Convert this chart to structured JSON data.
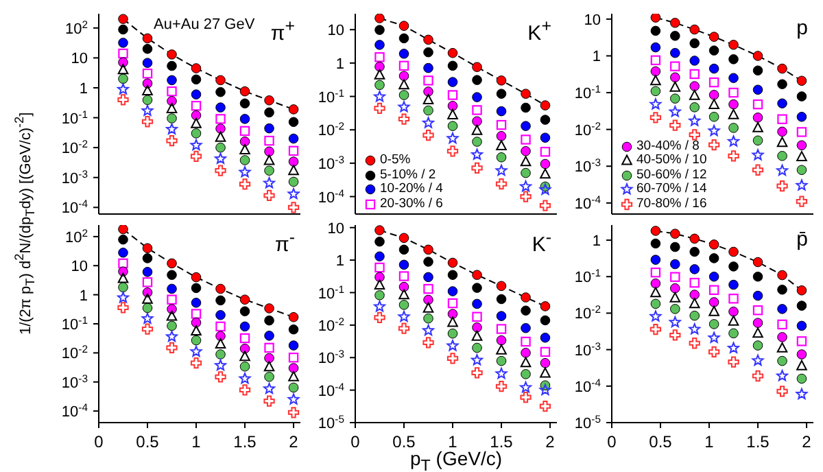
{
  "chart_data": [
    {
      "type": "scatter",
      "title": "π$^{+}$",
      "annotations": [
        "Au+Au 27 GeV"
      ],
      "ylabel": "1/(2π p$_{T}$) d$^{2}$N/(dp$_{T}$dy) [(GeV/c)$^{-2}$]",
      "log": true,
      "tick_labels": "y",
      "xlim": [
        0,
        2.07
      ],
      "xticks": [
        0,
        0.5,
        1,
        1.5,
        2
      ],
      "ylim": [
        6e-05,
        300
      ],
      "yticks": [
        {
          "value": 0.0001,
          "label": "10$^{-4}$"
        },
        {
          "value": 0.001,
          "label": "10$^{-3}$"
        },
        {
          "value": 0.01,
          "label": "10$^{-2}$"
        },
        {
          "value": 0.1,
          "label": "10$^{-1}$"
        },
        {
          "value": 1,
          "label": "1"
        },
        {
          "value": 10,
          "label": "10"
        },
        {
          "value": 100,
          "label": "10$^{2}$"
        }
      ],
      "x": [
        0.25,
        0.5,
        0.75,
        1.0,
        1.25,
        1.5,
        1.75,
        2.0
      ],
      "series": [
        {
          "color": "#ff0000",
          "marker": "circle",
          "values": [
            200,
            45,
            13,
            4.5,
            1.8,
            0.76,
            0.38,
            0.19
          ]
        },
        {
          "color": "#000000",
          "marker": "circle",
          "values": [
            89,
            20,
            5.4,
            1.9,
            0.72,
            0.3,
            0.15,
            0.072
          ]
        },
        {
          "color": "#0000ff",
          "marker": "circle",
          "values": [
            32,
            6.8,
            1.8,
            0.6,
            0.22,
            0.091,
            0.044,
            0.02
          ]
        },
        {
          "color": "#ff00ff",
          "marker": "square",
          "values": [
            14,
            3.0,
            0.76,
            0.25,
            0.091,
            0.036,
            0.017,
            0.0078
          ]
        },
        {
          "color": "#ff00ff",
          "marker": "circle",
          "values": [
            7.1,
            1.4,
            0.36,
            0.12,
            0.043,
            0.016,
            0.0074,
            0.0034
          ]
        },
        {
          "color": "#000000",
          "marker": "triangle",
          "values": [
            4.0,
            0.79,
            0.2,
            0.063,
            0.022,
            0.0083,
            0.0037,
            0.0017
          ]
        },
        {
          "color": "#5cc15c",
          "marker": "circle",
          "values": [
            2.0,
            0.39,
            0.095,
            0.03,
            0.01,
            0.0038,
            0.0017,
            0.00072
          ]
        },
        {
          "color": "#3333ff",
          "marker": "star",
          "values": [
            0.89,
            0.17,
            0.041,
            0.012,
            0.0042,
            0.0015,
            0.00065,
            0.00028
          ]
        },
        {
          "color": "#ff3333",
          "marker": "cross",
          "values": [
            0.4,
            0.074,
            0.017,
            0.0051,
            0.0017,
            0.0006,
            0.00025,
            0.0001
          ]
        },
        {
          "type": "line",
          "color": "#000000",
          "marker": "none",
          "line_style": "dashed",
          "values": [
            200,
            45,
            13,
            4.5,
            1.8,
            0.76,
            0.38,
            0.19
          ]
        }
      ]
    },
    {
      "type": "scatter",
      "title": "K$^{+}$",
      "log": true,
      "tick_labels": "y",
      "legend": "bottom left",
      "xlim": [
        0,
        2.07
      ],
      "xticks": [
        0,
        0.5,
        1,
        1.5,
        2
      ],
      "ylim": [
        3e-05,
        30
      ],
      "yticks": [
        {
          "value": 0.0001,
          "label": "10$^{-4}$"
        },
        {
          "value": 0.001,
          "label": "10$^{-3}$"
        },
        {
          "value": 0.01,
          "label": "10$^{-2}$"
        },
        {
          "value": 0.1,
          "label": "10$^{-1}$"
        },
        {
          "value": 1,
          "label": "1"
        },
        {
          "value": 10,
          "label": "10"
        }
      ],
      "x": [
        0.25,
        0.5,
        0.75,
        1.0,
        1.25,
        1.5,
        1.75,
        1.95
      ],
      "series": [
        {
          "name": "0-5%",
          "color": "#ff0000",
          "marker": "circle",
          "values": [
            22,
            13,
            5.0,
            2.0,
            0.76,
            0.3,
            0.12,
            0.054
          ]
        },
        {
          "name": "5-10% / 2",
          "color": "#000000",
          "marker": "circle",
          "values": [
            9.8,
            5.5,
            2.1,
            0.83,
            0.31,
            0.12,
            0.046,
            0.02
          ]
        },
        {
          "name": "10-20% / 4",
          "color": "#0000ff",
          "marker": "circle",
          "values": [
            3.5,
            1.9,
            0.71,
            0.27,
            0.095,
            0.036,
            0.013,
            0.0058
          ]
        },
        {
          "name": "20-30% / 6",
          "color": "#ff00ff",
          "marker": "square",
          "values": [
            1.5,
            0.83,
            0.3,
            0.11,
            0.039,
            0.014,
            0.0051,
            0.0022
          ]
        },
        {
          "color": "#ff00ff",
          "marker": "circle",
          "values": [
            0.78,
            0.41,
            0.14,
            0.052,
            0.018,
            0.0065,
            0.0023,
            0.00095
          ]
        },
        {
          "color": "#000000",
          "marker": "triangle",
          "values": [
            0.44,
            0.22,
            0.079,
            0.028,
            0.0095,
            0.0033,
            0.0011,
            0.00047
          ]
        },
        {
          "color": "#5cc15c",
          "marker": "circle",
          "values": [
            0.22,
            0.11,
            0.038,
            0.013,
            0.0044,
            0.0015,
            0.00051,
            0.0002
          ]
        },
        {
          "color": "#3333ff",
          "marker": "star",
          "values": [
            0.098,
            0.048,
            0.016,
            0.0055,
            0.0018,
            0.0006,
            0.0002,
            0.00016
          ]
        },
        {
          "color": "#ff3333",
          "marker": "cross",
          "values": [
            0.044,
            0.021,
            0.0069,
            0.0023,
            0.00072,
            0.00024,
            0.0001,
            5.4e-05
          ]
        },
        {
          "type": "line",
          "color": "#000000",
          "marker": "none",
          "line_style": "dashed",
          "values": [
            22,
            13,
            5.0,
            2.0,
            0.76,
            0.3,
            0.12,
            0.054
          ]
        }
      ]
    },
    {
      "type": "scatter",
      "title": "p",
      "log": true,
      "tick_labels": "y",
      "legend": "bottom left",
      "xlim": [
        0,
        2.07
      ],
      "xticks": [
        0,
        0.5,
        1,
        1.5,
        2
      ],
      "ylim": [
        5e-05,
        14
      ],
      "yticks": [
        {
          "value": 0.0001,
          "label": "10$^{-4}$"
        },
        {
          "value": 0.001,
          "label": "10$^{-3}$"
        },
        {
          "value": 0.01,
          "label": "10$^{-2}$"
        },
        {
          "value": 0.1,
          "label": "10$^{-1}$"
        },
        {
          "value": 1,
          "label": "1"
        },
        {
          "value": 10,
          "label": "10"
        }
      ],
      "x": [
        0.45,
        0.65,
        0.85,
        1.05,
        1.25,
        1.5,
        1.75,
        1.95
      ],
      "series": [
        {
          "color": "#ff0000",
          "marker": "circle",
          "values": [
            11,
            7.9,
            5.2,
            3.3,
            2.0,
            1.0,
            0.45,
            0.21
          ]
        },
        {
          "color": "#000000",
          "marker": "circle",
          "values": [
            4.8,
            3.5,
            2.2,
            1.4,
            0.81,
            0.4,
            0.17,
            0.079
          ]
        },
        {
          "color": "#0000ff",
          "marker": "circle",
          "values": [
            1.7,
            1.2,
            0.74,
            0.45,
            0.25,
            0.12,
            0.051,
            0.022
          ]
        },
        {
          "color": "#ff00ff",
          "marker": "square",
          "values": [
            0.76,
            0.52,
            0.32,
            0.19,
            0.1,
            0.048,
            0.019,
            0.0085
          ]
        },
        {
          "name": "30-40% / 8",
          "color": "#ff00ff",
          "marker": "circle",
          "values": [
            0.38,
            0.26,
            0.15,
            0.087,
            0.048,
            0.021,
            0.0087,
            0.0037
          ]
        },
        {
          "name": "40-50% / 10",
          "color": "#000000",
          "marker": "triangle",
          "values": [
            0.21,
            0.14,
            0.083,
            0.047,
            0.025,
            0.011,
            0.0044,
            0.0018
          ]
        },
        {
          "name": "50-60% / 12",
          "color": "#5cc15c",
          "marker": "circle",
          "values": [
            0.11,
            0.069,
            0.04,
            0.022,
            0.011,
            0.005,
            0.0019,
            0.00079
          ]
        },
        {
          "name": "60-70% / 14",
          "color": "#3333ff",
          "marker": "star",
          "values": [
            0.048,
            0.03,
            0.017,
            0.0091,
            0.0047,
            0.002,
            0.00076,
            0.0003
          ]
        },
        {
          "name": "70-80% / 16",
          "color": "#ff3333",
          "marker": "cross",
          "values": [
            0.021,
            0.013,
            0.0072,
            0.0038,
            0.0019,
            0.00079,
            0.00029,
            0.00011
          ]
        },
        {
          "type": "line",
          "color": "#000000",
          "marker": "none",
          "line_style": "dashed",
          "values": [
            11,
            7.9,
            5.2,
            3.3,
            2.0,
            1.0,
            0.45,
            0.21
          ]
        }
      ]
    },
    {
      "type": "scatter",
      "title": "π$^{-}$",
      "log": true,
      "xlim": [
        0,
        2.07
      ],
      "xticks": [
        0,
        0.5,
        1,
        1.5,
        2
      ],
      "ylim": [
        4e-05,
        250
      ],
      "yticks": [
        {
          "value": 0.0001,
          "label": "10$^{-4}$"
        },
        {
          "value": 0.001,
          "label": "10$^{-3}$"
        },
        {
          "value": 0.01,
          "label": "10$^{-2}$"
        },
        {
          "value": 0.1,
          "label": "10$^{-1}$"
        },
        {
          "value": 1,
          "label": "1"
        },
        {
          "value": 10,
          "label": "10"
        },
        {
          "value": 100,
          "label": "10$^{2}$"
        }
      ],
      "x": [
        0.25,
        0.5,
        0.75,
        1.0,
        1.25,
        1.5,
        1.75,
        2.0
      ],
      "series": [
        {
          "color": "#ff0000",
          "marker": "circle",
          "values": [
            180,
            40,
            12,
            4.0,
            1.6,
            0.68,
            0.34,
            0.17
          ]
        },
        {
          "color": "#000000",
          "marker": "circle",
          "values": [
            79,
            18,
            4.8,
            1.7,
            0.64,
            0.27,
            0.13,
            0.064
          ]
        },
        {
          "color": "#0000ff",
          "marker": "circle",
          "values": [
            28,
            6.1,
            1.6,
            0.53,
            0.2,
            0.081,
            0.039,
            0.018
          ]
        },
        {
          "color": "#ff00ff",
          "marker": "square",
          "values": [
            12,
            2.7,
            0.68,
            0.22,
            0.081,
            0.032,
            0.015,
            0.0069
          ]
        },
        {
          "color": "#ff00ff",
          "marker": "circle",
          "values": [
            6.3,
            1.2,
            0.32,
            0.11,
            0.038,
            0.014,
            0.0066,
            0.003
          ]
        },
        {
          "color": "#000000",
          "marker": "triangle",
          "values": [
            3.6,
            0.7,
            0.18,
            0.056,
            0.02,
            0.0074,
            0.0033,
            0.0015
          ]
        },
        {
          "color": "#5cc15c",
          "marker": "circle",
          "values": [
            1.8,
            0.35,
            0.085,
            0.027,
            0.0089,
            0.0034,
            0.0015,
            0.00064
          ]
        },
        {
          "color": "#3333ff",
          "marker": "star",
          "values": [
            0.79,
            0.15,
            0.036,
            0.011,
            0.0037,
            0.0013,
            0.00058,
            0.00025
          ]
        },
        {
          "color": "#ff3333",
          "marker": "cross",
          "values": [
            0.36,
            0.066,
            0.015,
            0.0045,
            0.0015,
            0.00053,
            0.00022,
            8.9e-05
          ]
        },
        {
          "type": "line",
          "color": "#000000",
          "marker": "none",
          "line_style": "dashed",
          "values": [
            180,
            40,
            12,
            4.0,
            1.6,
            0.68,
            0.34,
            0.17
          ]
        }
      ]
    },
    {
      "type": "scatter",
      "title": "K$^{-}$",
      "xlabel": "p$_{T}$ (GeV/c)",
      "log": true,
      "xlim": [
        0,
        2.07
      ],
      "xticks": [
        0,
        0.5,
        1,
        1.5,
        2
      ],
      "ylim": [
        1e-05,
        12
      ],
      "yticks": [
        {
          "value": 1e-05,
          "label": "10$^{-5}$"
        },
        {
          "value": 0.0001,
          "label": "10$^{-4}$"
        },
        {
          "value": 0.001,
          "label": "10$^{-3}$"
        },
        {
          "value": 0.01,
          "label": "10$^{-2}$"
        },
        {
          "value": 0.1,
          "label": "10$^{-1}$"
        },
        {
          "value": 1,
          "label": "1"
        },
        {
          "value": 10,
          "label": "10"
        }
      ],
      "x": [
        0.25,
        0.5,
        0.75,
        1.0,
        1.25,
        1.5,
        1.75,
        1.95
      ],
      "series": [
        {
          "color": "#ff0000",
          "marker": "circle",
          "values": [
            8.3,
            4.8,
            2.1,
            0.83,
            0.35,
            0.16,
            0.071,
            0.038
          ]
        },
        {
          "color": "#000000",
          "marker": "circle",
          "values": [
            3.7,
            2.1,
            0.89,
            0.35,
            0.14,
            0.063,
            0.028,
            0.014
          ]
        },
        {
          "color": "#0000ff",
          "marker": "circle",
          "values": [
            1.3,
            0.72,
            0.3,
            0.11,
            0.045,
            0.019,
            0.0081,
            0.0041
          ]
        },
        {
          "color": "#ff00ff",
          "marker": "square",
          "values": [
            0.59,
            0.32,
            0.13,
            0.047,
            0.018,
            0.0076,
            0.0031,
            0.0015
          ]
        },
        {
          "color": "#ff00ff",
          "marker": "circle",
          "values": [
            0.3,
            0.15,
            0.06,
            0.022,
            0.0085,
            0.0034,
            0.0014,
            0.00068
          ]
        },
        {
          "color": "#000000",
          "marker": "triangle",
          "values": [
            0.17,
            0.085,
            0.033,
            0.012,
            0.0045,
            0.0017,
            0.00069,
            0.00033
          ]
        },
        {
          "color": "#5cc15c",
          "marker": "circle",
          "values": [
            0.083,
            0.042,
            0.016,
            0.0055,
            0.002,
            0.00079,
            0.00031,
            0.00014
          ]
        },
        {
          "color": "#3333ff",
          "marker": "star",
          "values": [
            0.037,
            0.018,
            0.0068,
            0.0023,
            0.00083,
            0.00032,
            0.00012,
            0.0001
          ]
        },
        {
          "color": "#ff3333",
          "marker": "cross",
          "values": [
            0.017,
            0.0079,
            0.0029,
            0.00095,
            0.00034,
            0.00013,
            6e-05,
            3.2e-05
          ]
        },
        {
          "type": "line",
          "color": "#000000",
          "marker": "none",
          "line_style": "dashed",
          "values": [
            8.3,
            4.8,
            2.1,
            0.83,
            0.35,
            0.16,
            0.071,
            0.038
          ]
        }
      ]
    },
    {
      "type": "scatter",
      "title": "p̄",
      "log": true,
      "xlim": [
        0,
        2.07
      ],
      "xticks": [
        0,
        0.5,
        1,
        1.5,
        2
      ],
      "ylim": [
        1e-05,
        2.6
      ],
      "yticks": [
        {
          "value": 1e-05,
          "label": "10$^{-5}$"
        },
        {
          "value": 0.0001,
          "label": "10$^{-4}$"
        },
        {
          "value": 0.001,
          "label": "10$^{-3}$"
        },
        {
          "value": 0.01,
          "label": "10$^{-2}$"
        },
        {
          "value": 0.1,
          "label": "10$^{-1}$"
        },
        {
          "value": 1,
          "label": "1"
        }
      ],
      "x": [
        0.45,
        0.65,
        0.85,
        1.05,
        1.25,
        1.5,
        1.75,
        1.95
      ],
      "series": [
        {
          "color": "#ff0000",
          "marker": "circle",
          "values": [
            1.8,
            1.5,
            1.1,
            0.76,
            0.48,
            0.25,
            0.11,
            0.042
          ]
        },
        {
          "color": "#000000",
          "marker": "circle",
          "values": [
            0.81,
            0.65,
            0.48,
            0.32,
            0.19,
            0.1,
            0.044,
            0.016
          ]
        },
        {
          "color": "#0000ff",
          "marker": "circle",
          "values": [
            0.29,
            0.22,
            0.16,
            0.1,
            0.06,
            0.03,
            0.013,
            0.0045
          ]
        },
        {
          "color": "#ff00ff",
          "marker": "square",
          "values": [
            0.13,
            0.098,
            0.068,
            0.043,
            0.025,
            0.012,
            0.0049,
            0.0017
          ]
        },
        {
          "color": "#ff00ff",
          "marker": "circle",
          "values": [
            0.065,
            0.048,
            0.032,
            0.02,
            0.011,
            0.0054,
            0.0022,
            0.00074
          ]
        },
        {
          "color": "#000000",
          "marker": "triangle",
          "values": [
            0.036,
            0.026,
            0.018,
            0.011,
            0.006,
            0.0028,
            0.0011,
            0.00036
          ]
        },
        {
          "color": "#5cc15c",
          "marker": "circle",
          "values": [
            0.018,
            0.013,
            0.0085,
            0.005,
            0.0028,
            0.0013,
            0.00049,
            0.00016
          ]
        },
        {
          "color": "#3333ff",
          "marker": "star",
          "values": [
            0.0081,
            0.0056,
            0.0036,
            0.0021,
            0.0011,
            0.0005,
            0.00019,
            6e-05
          ]
        },
        {
          "color": "#ff3333",
          "marker": "cross",
          "values": [
            0.0036,
            0.0025,
            0.0015,
            0.00087,
            0.00046,
            0.00019,
            7.2e-05,
            null
          ]
        },
        {
          "type": "line",
          "color": "#000000",
          "marker": "none",
          "line_style": "dashed",
          "values": [
            1.8,
            1.5,
            1.1,
            0.76,
            0.48,
            0.25,
            0.11,
            0.042
          ]
        }
      ]
    }
  ]
}
